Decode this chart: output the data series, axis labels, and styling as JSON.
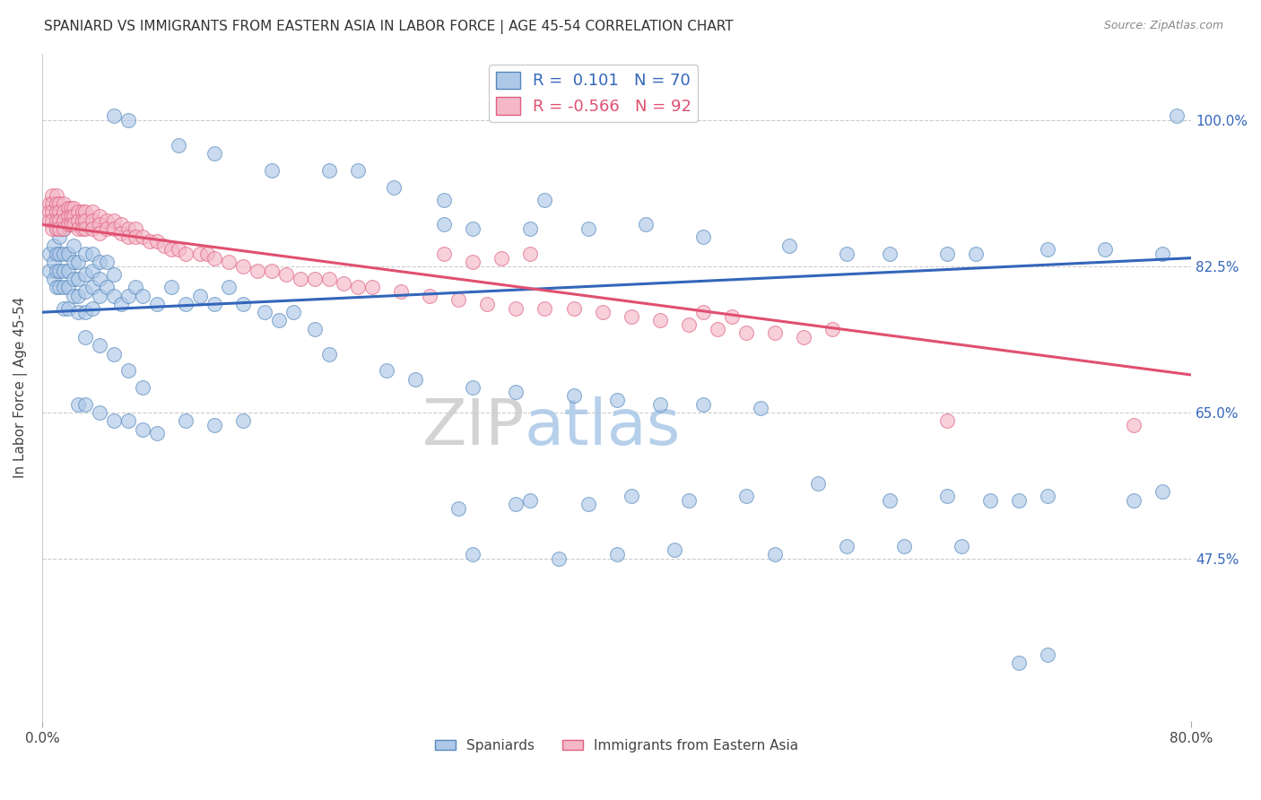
{
  "title": "SPANIARD VS IMMIGRANTS FROM EASTERN ASIA IN LABOR FORCE | AGE 45-54 CORRELATION CHART",
  "source": "Source: ZipAtlas.com",
  "ylabel": "In Labor Force | Age 45-54",
  "y_tick_labels": [
    "47.5%",
    "65.0%",
    "82.5%",
    "100.0%"
  ],
  "y_tick_values": [
    0.475,
    0.65,
    0.825,
    1.0
  ],
  "xlim": [
    0.0,
    0.8
  ],
  "ylim": [
    0.28,
    1.08
  ],
  "legend_label_spaniards": "Spaniards",
  "legend_label_immigrants": "Immigrants from Eastern Asia",
  "blue_fill": "#aec8e8",
  "blue_edge": "#5588bb",
  "pink_fill": "#f4b8c8",
  "pink_edge": "#e06080",
  "blue_line_color": "#3366bb",
  "pink_line_color": "#e05070",
  "watermark_zip": "ZIP",
  "watermark_atlas": "atlas",
  "blue_line_x0": 0.0,
  "blue_line_y0": 0.77,
  "blue_line_x1": 0.8,
  "blue_line_y1": 0.835,
  "pink_line_x0": 0.0,
  "pink_line_y0": 0.875,
  "pink_line_x1": 0.8,
  "pink_line_y1": 0.695,
  "blue_dots": [
    [
      0.005,
      0.84
    ],
    [
      0.005,
      0.82
    ],
    [
      0.008,
      0.85
    ],
    [
      0.008,
      0.83
    ],
    [
      0.008,
      0.81
    ],
    [
      0.01,
      0.87
    ],
    [
      0.01,
      0.84
    ],
    [
      0.01,
      0.82
    ],
    [
      0.01,
      0.8
    ],
    [
      0.012,
      0.86
    ],
    [
      0.012,
      0.84
    ],
    [
      0.012,
      0.82
    ],
    [
      0.012,
      0.8
    ],
    [
      0.015,
      0.87
    ],
    [
      0.015,
      0.84
    ],
    [
      0.015,
      0.82
    ],
    [
      0.015,
      0.8
    ],
    [
      0.015,
      0.775
    ],
    [
      0.018,
      0.84
    ],
    [
      0.018,
      0.82
    ],
    [
      0.018,
      0.8
    ],
    [
      0.018,
      0.775
    ],
    [
      0.022,
      0.85
    ],
    [
      0.022,
      0.83
    ],
    [
      0.022,
      0.81
    ],
    [
      0.022,
      0.79
    ],
    [
      0.025,
      0.83
    ],
    [
      0.025,
      0.81
    ],
    [
      0.025,
      0.79
    ],
    [
      0.025,
      0.77
    ],
    [
      0.03,
      0.84
    ],
    [
      0.03,
      0.815
    ],
    [
      0.03,
      0.795
    ],
    [
      0.03,
      0.77
    ],
    [
      0.035,
      0.84
    ],
    [
      0.035,
      0.82
    ],
    [
      0.035,
      0.8
    ],
    [
      0.035,
      0.775
    ],
    [
      0.04,
      0.83
    ],
    [
      0.04,
      0.81
    ],
    [
      0.04,
      0.79
    ],
    [
      0.045,
      0.83
    ],
    [
      0.045,
      0.8
    ],
    [
      0.05,
      0.815
    ],
    [
      0.05,
      0.79
    ],
    [
      0.055,
      0.78
    ],
    [
      0.06,
      0.79
    ],
    [
      0.065,
      0.8
    ],
    [
      0.07,
      0.79
    ],
    [
      0.08,
      0.78
    ],
    [
      0.09,
      0.8
    ],
    [
      0.1,
      0.78
    ],
    [
      0.11,
      0.79
    ],
    [
      0.12,
      0.78
    ],
    [
      0.13,
      0.8
    ],
    [
      0.14,
      0.78
    ],
    [
      0.155,
      0.77
    ],
    [
      0.165,
      0.76
    ],
    [
      0.175,
      0.77
    ],
    [
      0.19,
      0.75
    ],
    [
      0.03,
      0.74
    ],
    [
      0.04,
      0.73
    ],
    [
      0.05,
      0.72
    ],
    [
      0.06,
      0.7
    ],
    [
      0.07,
      0.68
    ],
    [
      0.025,
      0.66
    ],
    [
      0.03,
      0.66
    ],
    [
      0.04,
      0.65
    ],
    [
      0.05,
      0.64
    ],
    [
      0.06,
      0.64
    ],
    [
      0.07,
      0.63
    ],
    [
      0.08,
      0.625
    ],
    [
      0.1,
      0.64
    ],
    [
      0.12,
      0.635
    ],
    [
      0.14,
      0.64
    ],
    [
      0.05,
      1.005
    ],
    [
      0.06,
      1.0
    ],
    [
      0.095,
      0.97
    ],
    [
      0.12,
      0.96
    ],
    [
      0.16,
      0.94
    ],
    [
      0.2,
      0.94
    ],
    [
      0.22,
      0.94
    ],
    [
      0.245,
      0.92
    ],
    [
      0.28,
      0.905
    ],
    [
      0.35,
      0.905
    ],
    [
      0.28,
      0.875
    ],
    [
      0.3,
      0.87
    ],
    [
      0.34,
      0.87
    ],
    [
      0.38,
      0.87
    ],
    [
      0.42,
      0.875
    ],
    [
      0.46,
      0.86
    ],
    [
      0.52,
      0.85
    ],
    [
      0.56,
      0.84
    ],
    [
      0.59,
      0.84
    ],
    [
      0.63,
      0.84
    ],
    [
      0.65,
      0.84
    ],
    [
      0.7,
      0.845
    ],
    [
      0.74,
      0.845
    ],
    [
      0.78,
      0.84
    ],
    [
      0.79,
      1.005
    ],
    [
      0.29,
      0.535
    ],
    [
      0.33,
      0.54
    ],
    [
      0.34,
      0.545
    ],
    [
      0.38,
      0.54
    ],
    [
      0.41,
      0.55
    ],
    [
      0.45,
      0.545
    ],
    [
      0.49,
      0.55
    ],
    [
      0.54,
      0.565
    ],
    [
      0.59,
      0.545
    ],
    [
      0.63,
      0.55
    ],
    [
      0.66,
      0.545
    ],
    [
      0.68,
      0.545
    ],
    [
      0.7,
      0.55
    ],
    [
      0.76,
      0.545
    ],
    [
      0.78,
      0.555
    ],
    [
      0.3,
      0.48
    ],
    [
      0.36,
      0.475
    ],
    [
      0.4,
      0.48
    ],
    [
      0.44,
      0.485
    ],
    [
      0.51,
      0.48
    ],
    [
      0.56,
      0.49
    ],
    [
      0.6,
      0.49
    ],
    [
      0.64,
      0.49
    ],
    [
      0.68,
      0.35
    ],
    [
      0.7,
      0.36
    ],
    [
      0.2,
      0.72
    ],
    [
      0.24,
      0.7
    ],
    [
      0.26,
      0.69
    ],
    [
      0.3,
      0.68
    ],
    [
      0.33,
      0.675
    ],
    [
      0.37,
      0.67
    ],
    [
      0.4,
      0.665
    ],
    [
      0.43,
      0.66
    ],
    [
      0.46,
      0.66
    ],
    [
      0.5,
      0.655
    ]
  ],
  "pink_dots": [
    [
      0.005,
      0.9
    ],
    [
      0.005,
      0.89
    ],
    [
      0.005,
      0.88
    ],
    [
      0.007,
      0.91
    ],
    [
      0.007,
      0.9
    ],
    [
      0.007,
      0.89
    ],
    [
      0.007,
      0.88
    ],
    [
      0.007,
      0.87
    ],
    [
      0.01,
      0.91
    ],
    [
      0.01,
      0.9
    ],
    [
      0.01,
      0.89
    ],
    [
      0.01,
      0.88
    ],
    [
      0.01,
      0.87
    ],
    [
      0.012,
      0.9
    ],
    [
      0.012,
      0.89
    ],
    [
      0.012,
      0.88
    ],
    [
      0.012,
      0.87
    ],
    [
      0.015,
      0.9
    ],
    [
      0.015,
      0.89
    ],
    [
      0.015,
      0.88
    ],
    [
      0.015,
      0.87
    ],
    [
      0.018,
      0.895
    ],
    [
      0.018,
      0.885
    ],
    [
      0.018,
      0.875
    ],
    [
      0.02,
      0.895
    ],
    [
      0.02,
      0.885
    ],
    [
      0.02,
      0.875
    ],
    [
      0.022,
      0.895
    ],
    [
      0.022,
      0.885
    ],
    [
      0.022,
      0.875
    ],
    [
      0.025,
      0.89
    ],
    [
      0.025,
      0.88
    ],
    [
      0.025,
      0.87
    ],
    [
      0.028,
      0.89
    ],
    [
      0.028,
      0.88
    ],
    [
      0.028,
      0.87
    ],
    [
      0.03,
      0.89
    ],
    [
      0.03,
      0.88
    ],
    [
      0.03,
      0.87
    ],
    [
      0.035,
      0.89
    ],
    [
      0.035,
      0.88
    ],
    [
      0.035,
      0.87
    ],
    [
      0.04,
      0.885
    ],
    [
      0.04,
      0.875
    ],
    [
      0.04,
      0.865
    ],
    [
      0.045,
      0.88
    ],
    [
      0.045,
      0.87
    ],
    [
      0.05,
      0.88
    ],
    [
      0.05,
      0.87
    ],
    [
      0.055,
      0.875
    ],
    [
      0.055,
      0.865
    ],
    [
      0.06,
      0.87
    ],
    [
      0.06,
      0.86
    ],
    [
      0.065,
      0.87
    ],
    [
      0.065,
      0.86
    ],
    [
      0.07,
      0.86
    ],
    [
      0.075,
      0.855
    ],
    [
      0.08,
      0.855
    ],
    [
      0.085,
      0.85
    ],
    [
      0.09,
      0.845
    ],
    [
      0.095,
      0.845
    ],
    [
      0.1,
      0.84
    ],
    [
      0.11,
      0.84
    ],
    [
      0.115,
      0.84
    ],
    [
      0.12,
      0.835
    ],
    [
      0.13,
      0.83
    ],
    [
      0.14,
      0.825
    ],
    [
      0.15,
      0.82
    ],
    [
      0.16,
      0.82
    ],
    [
      0.17,
      0.815
    ],
    [
      0.18,
      0.81
    ],
    [
      0.19,
      0.81
    ],
    [
      0.2,
      0.81
    ],
    [
      0.21,
      0.805
    ],
    [
      0.22,
      0.8
    ],
    [
      0.23,
      0.8
    ],
    [
      0.25,
      0.795
    ],
    [
      0.27,
      0.79
    ],
    [
      0.29,
      0.785
    ],
    [
      0.31,
      0.78
    ],
    [
      0.33,
      0.775
    ],
    [
      0.35,
      0.775
    ],
    [
      0.37,
      0.775
    ],
    [
      0.39,
      0.77
    ],
    [
      0.41,
      0.765
    ],
    [
      0.43,
      0.76
    ],
    [
      0.45,
      0.755
    ],
    [
      0.47,
      0.75
    ],
    [
      0.49,
      0.745
    ],
    [
      0.51,
      0.745
    ],
    [
      0.53,
      0.74
    ],
    [
      0.55,
      0.75
    ],
    [
      0.28,
      0.84
    ],
    [
      0.3,
      0.83
    ],
    [
      0.32,
      0.835
    ],
    [
      0.34,
      0.84
    ],
    [
      0.46,
      0.77
    ],
    [
      0.48,
      0.765
    ],
    [
      0.63,
      0.64
    ],
    [
      0.76,
      0.635
    ]
  ]
}
